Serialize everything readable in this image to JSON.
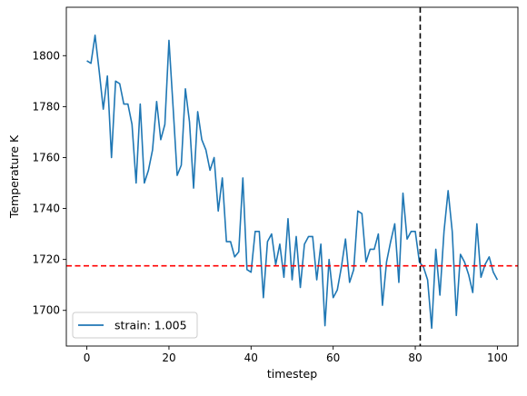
{
  "chart_data": {
    "type": "line",
    "title": "",
    "xlabel": "timestep",
    "ylabel": "Temperature K",
    "xlim": [
      -5,
      105
    ],
    "ylim": [
      1686,
      1819
    ],
    "xticks": [
      0,
      20,
      40,
      60,
      80,
      100
    ],
    "yticks": [
      1700,
      1720,
      1740,
      1760,
      1780,
      1800
    ],
    "grid": false,
    "legend_position": "lower-left",
    "series": [
      {
        "name": "strain: 1.005",
        "color": "#1f77b4",
        "x": [
          0,
          1,
          2,
          3,
          4,
          5,
          6,
          7,
          8,
          9,
          10,
          11,
          12,
          13,
          14,
          15,
          16,
          17,
          18,
          19,
          20,
          21,
          22,
          23,
          24,
          25,
          26,
          27,
          28,
          29,
          30,
          31,
          32,
          33,
          34,
          35,
          36,
          37,
          38,
          39,
          40,
          41,
          42,
          43,
          44,
          45,
          46,
          47,
          48,
          49,
          50,
          51,
          52,
          53,
          54,
          55,
          56,
          57,
          58,
          59,
          60,
          61,
          62,
          63,
          64,
          65,
          66,
          67,
          68,
          69,
          70,
          71,
          72,
          73,
          74,
          75,
          76,
          77,
          78,
          79,
          80,
          81,
          82,
          83,
          84,
          85,
          86,
          87,
          88,
          89,
          90,
          91,
          92,
          93,
          94,
          95,
          96,
          97,
          98,
          99,
          100
        ],
        "values": [
          1798,
          1797,
          1808,
          1794,
          1779,
          1792,
          1760,
          1790,
          1789,
          1781,
          1781,
          1773,
          1750,
          1781,
          1750,
          1755,
          1763,
          1782,
          1767,
          1773,
          1806,
          1780,
          1753,
          1757,
          1787,
          1774,
          1748,
          1778,
          1767,
          1763,
          1755,
          1760,
          1739,
          1752,
          1727,
          1727,
          1721,
          1723,
          1752,
          1716,
          1715,
          1731,
          1731,
          1705,
          1727,
          1730,
          1718,
          1726,
          1713,
          1736,
          1712,
          1729,
          1709,
          1726,
          1729,
          1729,
          1712,
          1726,
          1694,
          1720,
          1705,
          1708,
          1717,
          1728,
          1711,
          1716,
          1739,
          1738,
          1719,
          1724,
          1724,
          1730,
          1702,
          1719,
          1727,
          1734,
          1711,
          1746,
          1728,
          1731,
          1731,
          1719,
          1717,
          1712,
          1693,
          1724,
          1706,
          1731,
          1747,
          1731,
          1698,
          1722,
          1719,
          1714,
          1707,
          1734,
          1713,
          1718,
          1721,
          1715,
          1712
        ]
      }
    ],
    "reference_lines": [
      {
        "orientation": "horizontal",
        "value": 1717.5,
        "color": "#ff0000",
        "style": "dashed"
      },
      {
        "orientation": "vertical",
        "value": 81.2,
        "color": "#000000",
        "style": "dashed"
      }
    ]
  }
}
